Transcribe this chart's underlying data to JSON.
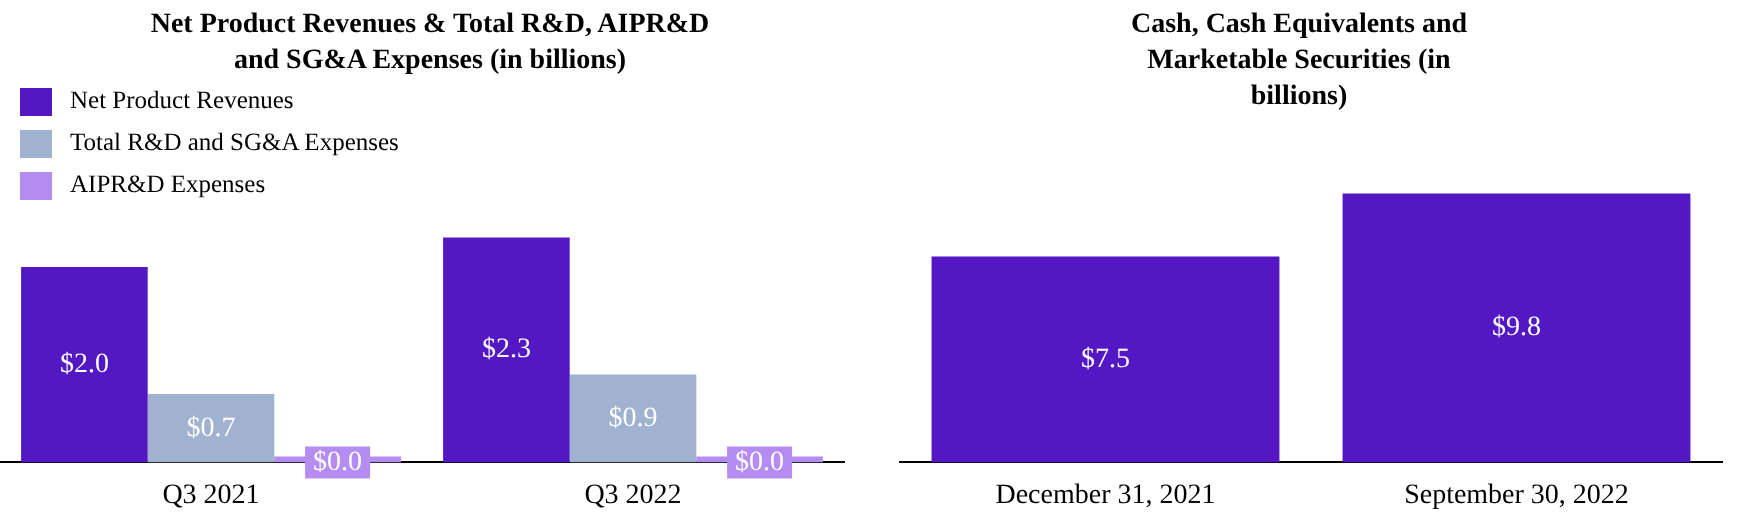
{
  "chart_data": [
    {
      "type": "bar",
      "title": "Net Product Revenues & Total R&D, AIPR&D and SG&A Expenses (in billions)",
      "categories": [
        "Q3 2021",
        "Q3 2022"
      ],
      "legend": "top left",
      "series": [
        {
          "name": "Net Product Revenues",
          "color": "#5318c4",
          "values": [
            2.0,
            2.3
          ],
          "value_labels": [
            "$2.0",
            "$2.3"
          ]
        },
        {
          "name": "Total R&D and SG&A Expenses",
          "color": "#a0b2cf",
          "values": [
            0.7,
            0.9
          ],
          "value_labels": [
            "$0.7",
            "$0.9"
          ]
        },
        {
          "name": "AIPR&D Expenses",
          "color": "#b48cf2",
          "values": [
            0.0,
            0.0
          ],
          "value_labels": [
            "$0.0",
            "$0.0"
          ]
        }
      ]
    },
    {
      "type": "bar",
      "title": "Cash, Cash Equivalents and Marketable Securities (in billions)",
      "categories": [
        "December 31, 2021",
        "September 30, 2022"
      ],
      "series": [
        {
          "color": "#5318c4",
          "values": [
            7.5,
            9.8
          ],
          "value_labels": [
            "$7.5",
            "$9.8"
          ]
        }
      ]
    }
  ]
}
